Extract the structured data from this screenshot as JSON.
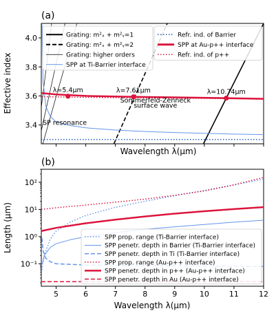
{
  "chart_data": [
    {
      "panel_label": "(a)",
      "type": "line",
      "xlabel": "Wavelength λ(μm)",
      "ylabel": "Effective index",
      "xlim": [
        4.5,
        12
      ],
      "ylim": [
        3.27,
        4.1
      ],
      "y_ticks": [
        "3.4",
        "3.6",
        "3.8",
        "4.0"
      ],
      "x_tick_labels_shown": false,
      "legend_left": [
        {
          "label": "Grating: m²ₓ + m²ᵧ=1",
          "color": "#000000",
          "style": "solid",
          "width": 2
        },
        {
          "label": "Grating: m²ₓ + m²ᵧ=2",
          "color": "#000000",
          "style": "dashed",
          "width": 2
        },
        {
          "label": "Grating: higher orders",
          "color": "#000000",
          "style": "solid",
          "width": 0.8
        },
        {
          "label": "SPP at Ti-Barrier interface",
          "color": "#6495ed",
          "style": "solid",
          "width": 1
        }
      ],
      "legend_right": [
        {
          "label": "Refr. ind. of Barrier",
          "color": "#1f5fbf",
          "style": "dotted",
          "width": 1.5
        },
        {
          "label": "SPP at Au-p++ interface",
          "color": "#dc143c",
          "style": "solid",
          "width": 3
        },
        {
          "label": "Refr. ind. of p++",
          "color": "#dc143c",
          "style": "dotted",
          "width": 1.5
        }
      ],
      "series": [
        {
          "key": "grating1",
          "color": "#000000",
          "style": "solid",
          "width": 1.6,
          "points": [
            [
              9.97,
              3.27
            ],
            [
              12.0,
              4.1
            ]
          ]
        },
        {
          "key": "grating2",
          "color": "#000000",
          "style": "dashed",
          "width": 1.6,
          "points": [
            [
              6.95,
              3.27
            ],
            [
              8.75,
              4.1
            ]
          ]
        },
        {
          "key": "higher1",
          "color": "#000000",
          "style": "solid",
          "width": 0.7,
          "points": [
            [
              4.55,
              3.27
            ],
            [
              5.7,
              4.1
            ]
          ]
        },
        {
          "key": "higher2",
          "color": "#000000",
          "style": "solid",
          "width": 0.7,
          "points": [
            [
              4.5,
              3.36
            ],
            [
              5.3,
              4.1
            ]
          ]
        },
        {
          "key": "higher3",
          "color": "#000000",
          "style": "solid",
          "width": 0.7,
          "points": [
            [
              4.5,
              3.52
            ],
            [
              4.85,
              4.1
            ]
          ]
        },
        {
          "key": "spp_ti_barrier",
          "color": "#6495ed",
          "style": "solid",
          "width": 1,
          "points": [
            [
              4.52,
              4.1
            ],
            [
              4.56,
              3.7
            ],
            [
              4.65,
              3.53
            ],
            [
              4.8,
              3.46
            ],
            [
              5.0,
              3.42
            ],
            [
              5.5,
              3.395
            ],
            [
              6.0,
              3.38
            ],
            [
              7.0,
              3.365
            ],
            [
              8.0,
              3.355
            ],
            [
              9.0,
              3.348
            ],
            [
              10.0,
              3.342
            ],
            [
              11.0,
              3.337
            ],
            [
              12.0,
              3.333
            ]
          ]
        },
        {
          "key": "refr_barrier",
          "color": "#1f5fbf",
          "style": "dotted",
          "width": 1.5,
          "points": [
            [
              4.5,
              3.3
            ],
            [
              12.0,
              3.3
            ]
          ]
        },
        {
          "key": "refr_pplus",
          "color": "#dc143c",
          "style": "dotted",
          "width": 1.5,
          "points": [
            [
              4.5,
              3.595
            ],
            [
              6.0,
              3.59
            ],
            [
              8.0,
              3.587
            ],
            [
              10.0,
              3.583
            ],
            [
              12.0,
              3.578
            ]
          ]
        },
        {
          "key": "spp_au_pplus",
          "color": "#dc143c",
          "style": "solid",
          "width": 2.5,
          "points": [
            [
              4.5,
              3.62
            ],
            [
              5.0,
              3.61
            ],
            [
              6.0,
              3.6
            ],
            [
              7.0,
              3.596
            ],
            [
              7.61,
              3.594
            ],
            [
              9.0,
              3.59
            ],
            [
              10.74,
              3.585
            ],
            [
              12.0,
              3.58
            ]
          ]
        }
      ],
      "markers": [
        {
          "x": 5.4,
          "y": 3.598,
          "label": "λ=5.4μm",
          "color": "#dc143c"
        },
        {
          "x": 7.61,
          "y": 3.594,
          "label": "λ=7.61μm",
          "color": "#dc143c"
        },
        {
          "x": 10.74,
          "y": 3.585,
          "label": "λ=10.74μm",
          "color": "#dc143c"
        }
      ],
      "annotations": [
        {
          "text": "Sommerfeld-Zenneck",
          "x": 8.35,
          "y": 3.555,
          "color": "#dc143c"
        },
        {
          "text": "surface wave",
          "x": 8.35,
          "y": 3.518,
          "color": "#dc143c"
        },
        {
          "text": "SP resonance",
          "x": 4.55,
          "y": 3.4,
          "color": "#6495ed"
        }
      ]
    },
    {
      "panel_label": "(b)",
      "type": "line",
      "xlabel": "Wavelength λ(μm)",
      "ylabel": "Length (μm)",
      "xlim": [
        4.5,
        12
      ],
      "ylim": [
        0.015,
        300
      ],
      "yscale": "log",
      "x_ticks": [
        "5",
        "6",
        "7",
        "8",
        "9",
        "10",
        "11",
        "12"
      ],
      "y_ticks": [
        "10⁻¹",
        "10⁰",
        "10¹",
        "10²"
      ],
      "legend": [
        {
          "label": "SPP prop. range (Ti-Barrier interface)",
          "color": "#6495ed",
          "style": "dotted",
          "width": 1.5
        },
        {
          "label": "SPP penetr. depth in Barrier (Ti-Barrier interface)",
          "color": "#6495ed",
          "style": "solid",
          "width": 1
        },
        {
          "label": "SPP penetr. depth in Ti (Ti-Barrier interface)",
          "color": "#6495ed",
          "style": "dashed",
          "width": 1.5
        },
        {
          "label": "SPP prop. range (Au-p++ interface)",
          "color": "#dc143c",
          "style": "dotted",
          "width": 1.5
        },
        {
          "label": "SPP penetr. depth in p++ (Au-p++ interface)",
          "color": "#dc143c",
          "style": "solid",
          "width": 2.5
        },
        {
          "label": "SPP penetr. depth in Au (Au-p++ interface)",
          "color": "#dc143c",
          "style": "dashed",
          "width": 1.5
        }
      ],
      "series": [
        {
          "key": "ti_prop_range",
          "color": "#6495ed",
          "style": "dotted",
          "width": 1.5,
          "points": [
            [
              4.52,
              0.06
            ],
            [
              4.6,
              0.2
            ],
            [
              4.8,
              0.8
            ],
            [
              5.0,
              1.6
            ],
            [
              5.5,
              3.5
            ],
            [
              6.0,
              6
            ],
            [
              6.5,
              8.5
            ],
            [
              7.0,
              12
            ],
            [
              8.0,
              20
            ],
            [
              9.0,
              32
            ],
            [
              10.0,
              50
            ],
            [
              11.0,
              80
            ],
            [
              12.0,
              130
            ]
          ]
        },
        {
          "key": "ti_depth_barrier",
          "color": "#6495ed",
          "style": "solid",
          "width": 1,
          "points": [
            [
              4.53,
              0.1
            ],
            [
              4.6,
              0.2
            ],
            [
              4.8,
              0.4
            ],
            [
              5.0,
              0.55
            ],
            [
              5.5,
              0.78
            ],
            [
              6.0,
              1.0
            ],
            [
              7.0,
              1.4
            ],
            [
              8.0,
              1.85
            ],
            [
              9.0,
              2.3
            ],
            [
              10.0,
              2.8
            ],
            [
              11.0,
              3.4
            ],
            [
              12.0,
              4.0
            ]
          ]
        },
        {
          "key": "ti_depth_ti",
          "color": "#6495ed",
          "style": "dashed",
          "width": 1.5,
          "points": [
            [
              4.52,
              0.9
            ],
            [
              4.56,
              0.3
            ],
            [
              4.65,
              0.16
            ],
            [
              4.8,
              0.12
            ],
            [
              5.0,
              0.1
            ],
            [
              6.0,
              0.09
            ],
            [
              8.0,
              0.085
            ],
            [
              10.0,
              0.082
            ],
            [
              12.0,
              0.08
            ]
          ]
        },
        {
          "key": "au_prop_range",
          "color": "#dc143c",
          "style": "dotted",
          "width": 1.5,
          "points": [
            [
              4.5,
              10
            ],
            [
              5.0,
              11.5
            ],
            [
              6.0,
              14.5
            ],
            [
              7.0,
              18.5
            ],
            [
              8.0,
              24
            ],
            [
              9.0,
              33
            ],
            [
              10.0,
              48
            ],
            [
              11.0,
              80
            ],
            [
              12.0,
              150
            ]
          ]
        },
        {
          "key": "au_depth_pplus",
          "color": "#dc143c",
          "style": "solid",
          "width": 2.5,
          "points": [
            [
              4.5,
              1.6
            ],
            [
              5.0,
              2.1
            ],
            [
              6.0,
              3.1
            ],
            [
              7.0,
              4.2
            ],
            [
              8.0,
              5.5
            ],
            [
              9.0,
              7.0
            ],
            [
              10.0,
              8.6
            ],
            [
              11.0,
              10.3
            ],
            [
              12.0,
              12.2
            ]
          ]
        },
        {
          "key": "au_depth_au",
          "color": "#dc143c",
          "style": "dashed",
          "width": 1.5,
          "points": [
            [
              4.5,
              0.022
            ],
            [
              12.0,
              0.022
            ]
          ]
        }
      ]
    }
  ]
}
